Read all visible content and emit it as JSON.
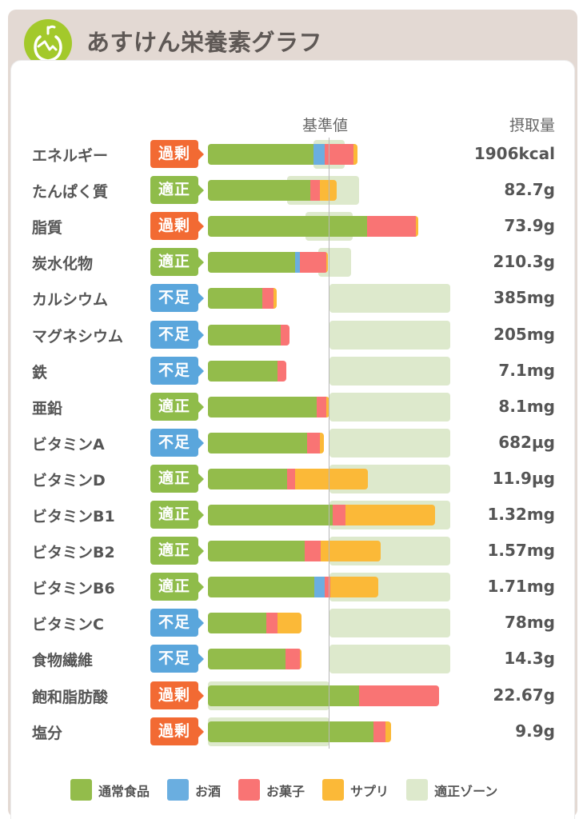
{
  "header": {
    "title": "あすけん栄養素グラフ",
    "logo_icon": "apple-icon"
  },
  "columns": {
    "baseline_label": "基準値",
    "intake_label": "摂取量"
  },
  "colors": {
    "regular_food": "#93bc4b",
    "alcohol": "#6aaee0",
    "snacks": "#f97474",
    "supplement": "#fbb938",
    "zone": "#dde9cc",
    "status_over": "#f26a33",
    "status_ok": "#8fbc4a",
    "status_under": "#5aa6dc"
  },
  "legend": [
    {
      "key": "regular_food",
      "label": "通常食品"
    },
    {
      "key": "alcohol",
      "label": "お酒"
    },
    {
      "key": "snacks",
      "label": "お菓子"
    },
    {
      "key": "supplement",
      "label": "サプリ"
    },
    {
      "key": "zone",
      "label": "適正ゾーン"
    }
  ],
  "chart_data": {
    "type": "bar",
    "orientation": "horizontal-stacked",
    "title": "あすけん栄養素グラフ",
    "xlabel": "基準値 (% of reference)",
    "units": "percent of reference value",
    "baseline": 100,
    "categories": [
      "エネルギー",
      "たんぱく質",
      "脂質",
      "炭水化物",
      "カルシウム",
      "マグネシウム",
      "鉄",
      "亜鉛",
      "ビタミンA",
      "ビタミンD",
      "ビタミンB1",
      "ビタミンB2",
      "ビタミンB6",
      "ビタミンC",
      "食物繊維",
      "飽和脂肪酸",
      "塩分"
    ],
    "status": [
      "過剰",
      "適正",
      "過剰",
      "適正",
      "不足",
      "不足",
      "不足",
      "適正",
      "不足",
      "適正",
      "適正",
      "適正",
      "適正",
      "不足",
      "不足",
      "過剰",
      "過剰"
    ],
    "status_kind": [
      "over",
      "ok",
      "over",
      "ok",
      "under",
      "under",
      "under",
      "ok",
      "under",
      "ok",
      "ok",
      "ok",
      "ok",
      "under",
      "under",
      "over",
      "over"
    ],
    "intake": [
      "1906kcal",
      "82.7g",
      "73.9g",
      "210.3g",
      "385mg",
      "205mg",
      "7.1mg",
      "8.1mg",
      "682µg",
      "11.9µg",
      "1.32mg",
      "1.57mg",
      "1.71mg",
      "78mg",
      "14.3g",
      "22.67g",
      "9.9g"
    ],
    "series": [
      {
        "name": "通常食品",
        "key": "regular_food",
        "values": [
          86.8,
          84.2,
          130.9,
          71.7,
          44.7,
          59.9,
          57.2,
          89.5,
          81.6,
          65.1,
          102.6,
          79.6,
          87.5,
          48.0,
          63.8,
          124.3,
          136.2
        ]
      },
      {
        "name": "お酒",
        "key": "alcohol",
        "values": [
          9.2,
          0,
          0,
          3.9,
          0,
          0,
          0,
          0,
          0,
          0,
          0,
          0,
          8.6,
          0,
          0,
          0,
          0
        ]
      },
      {
        "name": "お菓子",
        "key": "snacks",
        "values": [
          23.7,
          7.9,
          40.1,
          21.7,
          9.2,
          7.2,
          7.2,
          7.9,
          10.5,
          6.6,
          10.5,
          13.2,
          4.6,
          9.2,
          11.8,
          65.8,
          9.9
        ]
      },
      {
        "name": "サプリ",
        "key": "supplement",
        "values": [
          3.3,
          13.8,
          2.0,
          1.3,
          2.6,
          0,
          0,
          2.6,
          3.3,
          59.9,
          73.7,
          49.3,
          39.5,
          19.7,
          1.3,
          0,
          4.6
        ]
      }
    ],
    "zones": [
      [
        86.8,
        112.5
      ],
      [
        65.1,
        124.3
      ],
      [
        80.3,
        119.1
      ],
      [
        90.8,
        117.8
      ],
      [
        100,
        199.3
      ],
      [
        100,
        199.3
      ],
      [
        100,
        199.3
      ],
      [
        100,
        199.3
      ],
      [
        100,
        199.3
      ],
      [
        100,
        199.3
      ],
      [
        100,
        199.3
      ],
      [
        100,
        199.3
      ],
      [
        100,
        199.3
      ],
      [
        100,
        199.3
      ],
      [
        100,
        199.3
      ],
      [
        0,
        100
      ],
      [
        0,
        100
      ]
    ],
    "legend_position": "bottom"
  }
}
